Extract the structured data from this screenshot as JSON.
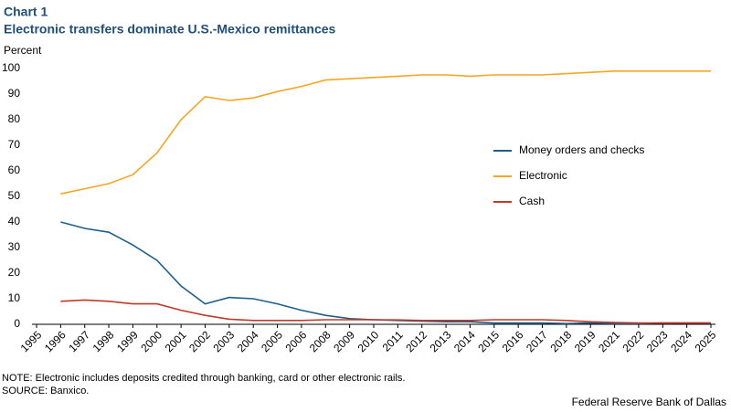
{
  "chart_data": {
    "type": "line",
    "label": "Chart 1",
    "title": "Electronic transfers dominate U.S.-Mexico remittances",
    "y_label": "Percent",
    "note": "NOTE: Electronic includes deposits credited through banking, card or other electronic rails.",
    "source": "SOURCE: Banxico.",
    "credit": "Federal Reserve Bank of Dallas",
    "categories": [
      "1995",
      "1996",
      "1997",
      "1998",
      "1999",
      "2000",
      "2001",
      "2002",
      "2003",
      "2004",
      "2005",
      "2006",
      "2008",
      "2009",
      "2010",
      "2011",
      "2012",
      "2013",
      "2014",
      "2015",
      "2016",
      "2017",
      "2018",
      "2019",
      "2021",
      "2022",
      "2023",
      "2024",
      "2025"
    ],
    "series": [
      {
        "name": "Money orders and checks",
        "color": "#1d5f8a",
        "values": [
          null,
          40,
          37.5,
          36,
          31,
          25,
          15,
          8,
          10.5,
          10,
          8,
          5.5,
          3.5,
          2.2,
          1.8,
          1.5,
          1.2,
          1,
          1,
          0.5,
          0.5,
          0.5,
          0.3,
          0.5,
          0.3,
          0.3,
          0.5,
          0.5,
          0.5
        ]
      },
      {
        "name": "Electronic",
        "color": "#f5a623",
        "values": [
          null,
          51,
          53,
          55,
          58.5,
          67,
          80,
          89,
          87.5,
          88.5,
          91,
          93,
          95.5,
          96,
          96.5,
          97,
          97.5,
          97.5,
          97,
          97.5,
          97.5,
          97.5,
          98,
          98.5,
          99,
          99,
          99,
          99,
          99
        ]
      },
      {
        "name": "Cash",
        "color": "#c0392b",
        "values": [
          null,
          9,
          9.5,
          9,
          8,
          8,
          5.5,
          3.5,
          2,
          1.5,
          1.5,
          1.5,
          1.8,
          1.8,
          1.8,
          1.7,
          1.5,
          1.5,
          1.5,
          1.8,
          1.8,
          1.8,
          1.5,
          1,
          0.7,
          0.5,
          0.5,
          0.5,
          0.5
        ]
      }
    ],
    "ylim": [
      0,
      100
    ],
    "yticks": [
      0,
      10,
      20,
      30,
      40,
      50,
      60,
      70,
      80,
      90,
      100
    ],
    "grid": false
  }
}
